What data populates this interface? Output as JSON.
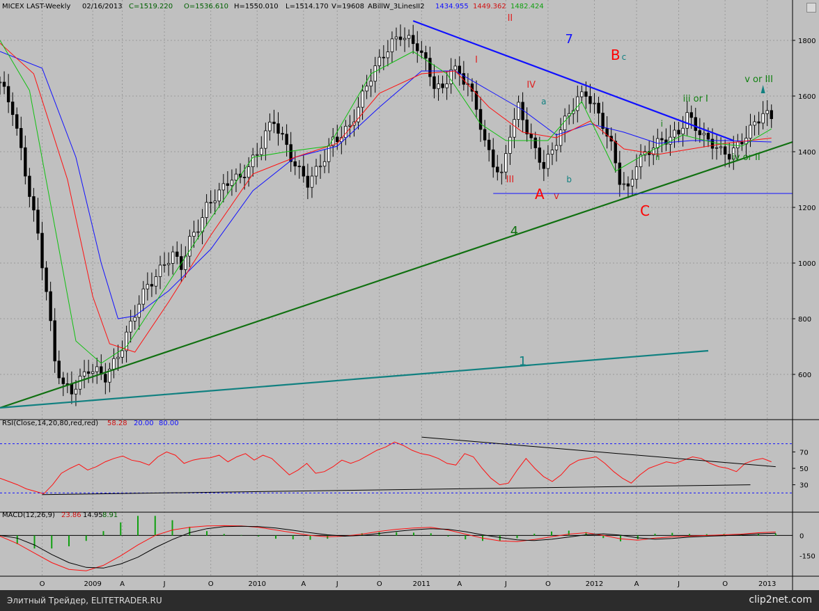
{
  "window_title": "",
  "price_header": {
    "symbol": "MICEX LAST-Weekly",
    "date": "02/16/2013",
    "close": "C=1519.220",
    "open": "O=1536.610",
    "high": "H=1550.010",
    "low": "L=1514.170",
    "volume": "V=19608",
    "indicator": "ABillW_3LinesII2",
    "ind_values": [
      "1434.955",
      "1449.362",
      "1482.424"
    ]
  },
  "rsi_header": {
    "label": "RSI(Close,14,20,80,red,red)",
    "value": "58.28",
    "low": "20.00",
    "high": "80.00"
  },
  "macd_header": {
    "label": "MACD(12,26,9)",
    "macd": "23.86",
    "signal": "14.95",
    "hist": "8.91"
  },
  "colors": {
    "bg": "#c0c0c0",
    "up": "#000000",
    "blue": "#1010ff",
    "red": "#ff1010",
    "green": "#10c010",
    "darkgreen": "#107010",
    "teal": "#108080"
  },
  "annotations": [
    {
      "text": "II",
      "color": "#e02020"
    },
    {
      "text": "I",
      "color": "#e02020"
    },
    {
      "text": "III",
      "color": "#e02020"
    },
    {
      "text": "IV",
      "color": "#e02020"
    },
    {
      "text": "A",
      "color": "#ff0000"
    },
    {
      "text": "v",
      "color": "#e02020"
    },
    {
      "text": "a",
      "color": "#108080"
    },
    {
      "text": "b",
      "color": "#108080"
    },
    {
      "text": "B",
      "color": "#ff0000"
    },
    {
      "text": "c",
      "color": "#108080"
    },
    {
      "text": "C",
      "color": "#ff0000"
    },
    {
      "text": "i",
      "color": "#108010"
    },
    {
      "text": "ii",
      "color": "#108010"
    },
    {
      "text": "iii or I",
      "color": "#108010"
    },
    {
      "text": "iv or II",
      "color": "#108010"
    },
    {
      "text": "v or III",
      "color": "#108010"
    },
    {
      "text": "7",
      "color": "#1010ff"
    },
    {
      "text": "4",
      "color": "#107010"
    },
    {
      "text": "1",
      "color": "#108080"
    }
  ],
  "chart_data": [
    {
      "type": "line",
      "title": "MICEX LAST-Weekly",
      "ylim": [
        450,
        1900
      ],
      "y_ticks": [
        600,
        800,
        1000,
        1200,
        1400,
        1600,
        1800
      ],
      "x_tick_labels": [
        "O",
        "2009",
        "A",
        "J",
        "O",
        "2010",
        "A",
        "J",
        "O",
        "2011",
        "A",
        "J",
        "O",
        "2012",
        "A",
        "J",
        "O",
        "2013"
      ],
      "series": [
        {
          "name": "1434.955",
          "color": "#1010ff"
        },
        {
          "name": "1449.362",
          "color": "#ff1010"
        },
        {
          "name": "1482.424",
          "color": "#10c010"
        }
      ],
      "price_points": [
        [
          0,
          1650
        ],
        [
          3,
          1550
        ],
        [
          5,
          1400
        ],
        [
          7,
          1250
        ],
        [
          9,
          1100
        ],
        [
          11,
          900
        ],
        [
          13,
          650
        ],
        [
          15,
          560
        ],
        [
          17,
          540
        ],
        [
          19,
          580
        ],
        [
          21,
          620
        ],
        [
          23,
          610
        ],
        [
          25,
          590
        ],
        [
          27,
          640
        ],
        [
          29,
          700
        ],
        [
          31,
          780
        ],
        [
          33,
          860
        ],
        [
          35,
          920
        ],
        [
          37,
          950
        ],
        [
          39,
          1000
        ],
        [
          41,
          1030
        ],
        [
          43,
          990
        ],
        [
          45,
          1080
        ],
        [
          47,
          1130
        ],
        [
          49,
          1200
        ],
        [
          51,
          1240
        ],
        [
          53,
          1270
        ],
        [
          55,
          1310
        ],
        [
          57,
          1300
        ],
        [
          59,
          1350
        ],
        [
          61,
          1390
        ],
        [
          63,
          1470
        ],
        [
          65,
          1510
        ],
        [
          67,
          1450
        ],
        [
          69,
          1380
        ],
        [
          71,
          1330
        ],
        [
          73,
          1290
        ],
        [
          75,
          1330
        ],
        [
          77,
          1380
        ],
        [
          79,
          1440
        ],
        [
          81,
          1460
        ],
        [
          83,
          1490
        ],
        [
          85,
          1560
        ],
        [
          87,
          1640
        ],
        [
          89,
          1700
        ],
        [
          91,
          1750
        ],
        [
          93,
          1790
        ],
        [
          95,
          1820
        ],
        [
          97,
          1800
        ],
        [
          99,
          1780
        ],
        [
          101,
          1720
        ],
        [
          103,
          1640
        ],
        [
          105,
          1620
        ],
        [
          107,
          1700
        ],
        [
          109,
          1680
        ],
        [
          111,
          1640
        ],
        [
          113,
          1560
        ],
        [
          115,
          1430
        ],
        [
          117,
          1360
        ],
        [
          119,
          1310
        ],
        [
          121,
          1470
        ],
        [
          123,
          1560
        ],
        [
          125,
          1480
        ],
        [
          127,
          1400
        ],
        [
          129,
          1350
        ],
        [
          131,
          1400
        ],
        [
          133,
          1480
        ],
        [
          135,
          1540
        ],
        [
          137,
          1590
        ],
        [
          139,
          1610
        ],
        [
          141,
          1560
        ],
        [
          143,
          1500
        ],
        [
          145,
          1420
        ],
        [
          147,
          1300
        ],
        [
          149,
          1260
        ],
        [
          151,
          1360
        ],
        [
          153,
          1390
        ],
        [
          155,
          1420
        ],
        [
          157,
          1440
        ],
        [
          159,
          1450
        ],
        [
          161,
          1470
        ],
        [
          163,
          1530
        ],
        [
          165,
          1490
        ],
        [
          167,
          1450
        ],
        [
          169,
          1430
        ],
        [
          171,
          1400
        ],
        [
          173,
          1390
        ],
        [
          175,
          1420
        ],
        [
          177,
          1460
        ],
        [
          179,
          1500
        ],
        [
          181,
          1540
        ],
        [
          183,
          1520
        ]
      ],
      "ma_blue": [
        [
          0,
          1760
        ],
        [
          10,
          1700
        ],
        [
          18,
          1380
        ],
        [
          24,
          1000
        ],
        [
          28,
          800
        ],
        [
          32,
          810
        ],
        [
          40,
          900
        ],
        [
          50,
          1050
        ],
        [
          60,
          1260
        ],
        [
          70,
          1380
        ],
        [
          80,
          1420
        ],
        [
          90,
          1560
        ],
        [
          100,
          1690
        ],
        [
          108,
          1690
        ],
        [
          116,
          1620
        ],
        [
          124,
          1550
        ],
        [
          132,
          1460
        ],
        [
          140,
          1500
        ],
        [
          148,
          1470
        ],
        [
          156,
          1430
        ],
        [
          164,
          1440
        ],
        [
          172,
          1440
        ],
        [
          183,
          1435
        ]
      ],
      "ma_red": [
        [
          0,
          1790
        ],
        [
          8,
          1680
        ],
        [
          16,
          1300
        ],
        [
          22,
          880
        ],
        [
          26,
          710
        ],
        [
          32,
          680
        ],
        [
          40,
          860
        ],
        [
          50,
          1100
        ],
        [
          60,
          1320
        ],
        [
          70,
          1380
        ],
        [
          80,
          1430
        ],
        [
          90,
          1610
        ],
        [
          100,
          1680
        ],
        [
          108,
          1690
        ],
        [
          116,
          1560
        ],
        [
          124,
          1470
        ],
        [
          132,
          1450
        ],
        [
          140,
          1510
        ],
        [
          148,
          1410
        ],
        [
          156,
          1390
        ],
        [
          164,
          1410
        ],
        [
          172,
          1430
        ],
        [
          183,
          1449
        ]
      ],
      "ma_green": [
        [
          0,
          1800
        ],
        [
          7,
          1620
        ],
        [
          14,
          1050
        ],
        [
          18,
          720
        ],
        [
          24,
          640
        ],
        [
          30,
          700
        ],
        [
          40,
          930
        ],
        [
          50,
          1160
        ],
        [
          60,
          1380
        ],
        [
          68,
          1400
        ],
        [
          78,
          1420
        ],
        [
          88,
          1680
        ],
        [
          98,
          1760
        ],
        [
          106,
          1680
        ],
        [
          114,
          1500
        ],
        [
          120,
          1440
        ],
        [
          130,
          1440
        ],
        [
          138,
          1580
        ],
        [
          146,
          1330
        ],
        [
          154,
          1400
        ],
        [
          162,
          1460
        ],
        [
          170,
          1430
        ],
        [
          176,
          1420
        ],
        [
          183,
          1482
        ]
      ],
      "trendlines": [
        {
          "id": "7",
          "color": "#1010ff",
          "from": [
            98,
            1870
          ],
          "to": [
            174,
            1440
          ]
        },
        {
          "id": "4",
          "color": "#107010",
          "from": [
            0,
            480
          ],
          "to": [
            188,
            1435
          ]
        },
        {
          "id": "1",
          "color": "#108080",
          "from": [
            0,
            480
          ],
          "to": [
            168,
            685
          ]
        },
        {
          "id": "h",
          "color": "#1010ff",
          "from": [
            117,
            1250
          ],
          "to": [
            188,
            1250
          ]
        }
      ]
    },
    {
      "type": "line",
      "title": "RSI(Close,14,20,80,red,red)",
      "ylim": [
        0,
        100
      ],
      "y_ticks": [
        30,
        50,
        70
      ],
      "levels": [
        20,
        80
      ],
      "values": [
        38,
        34,
        30,
        25,
        22,
        19,
        30,
        44,
        50,
        55,
        48,
        52,
        58,
        62,
        65,
        60,
        58,
        54,
        64,
        70,
        66,
        56,
        60,
        62,
        63,
        66,
        58,
        64,
        68,
        60,
        66,
        62,
        52,
        42,
        48,
        56,
        44,
        46,
        52,
        60,
        56,
        60,
        66,
        72,
        76,
        82,
        78,
        72,
        68,
        66,
        62,
        56,
        54,
        68,
        64,
        50,
        38,
        30,
        32,
        48,
        62,
        50,
        40,
        34,
        42,
        54,
        60,
        62,
        64,
        56,
        46,
        38,
        32,
        42,
        50,
        54,
        58,
        56,
        60,
        64,
        62,
        56,
        52,
        50,
        46,
        56,
        60,
        62,
        58
      ]
    },
    {
      "type": "line",
      "title": "MACD(12,26,9)",
      "ylim": [
        -300,
        120
      ],
      "y_ticks": [
        0,
        -150
      ],
      "macd": [
        -5,
        -60,
        -130,
        -200,
        -250,
        -260,
        -220,
        -150,
        -70,
        0,
        40,
        60,
        70,
        72,
        70,
        60,
        40,
        20,
        0,
        -10,
        -5,
        10,
        30,
        45,
        55,
        60,
        40,
        10,
        -20,
        -40,
        -45,
        -30,
        -10,
        10,
        20,
        0,
        -25,
        -35,
        -20,
        -10,
        -5,
        0,
        5,
        10,
        20,
        25
      ],
      "signal": [
        0,
        -20,
        -70,
        -140,
        -200,
        -235,
        -240,
        -210,
        -160,
        -90,
        -30,
        20,
        50,
        65,
        68,
        65,
        55,
        38,
        20,
        5,
        -5,
        0,
        15,
        30,
        42,
        50,
        45,
        28,
        5,
        -15,
        -32,
        -38,
        -28,
        -12,
        5,
        12,
        2,
        -18,
        -28,
        -22,
        -12,
        -6,
        -2,
        4,
        12,
        16
      ],
      "hist_sign": [
        -1,
        -1,
        -1,
        -1,
        -1,
        -1,
        1,
        1,
        1,
        1,
        1,
        1,
        1,
        1,
        1,
        -1,
        -1,
        -1,
        -1,
        -1,
        1,
        1,
        1,
        1,
        1,
        1,
        -1,
        -1,
        -1,
        -1,
        -1,
        1,
        1,
        1,
        1,
        -1,
        -1,
        -1,
        1,
        1,
        1,
        1,
        1,
        1,
        1,
        1
      ]
    }
  ]
}
